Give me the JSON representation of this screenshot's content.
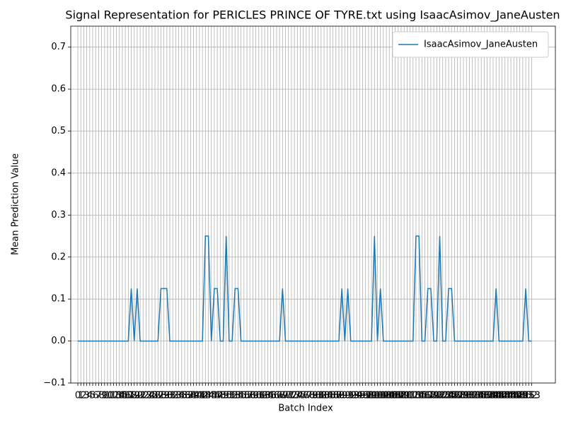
{
  "chart_data": {
    "type": "line",
    "title": "Signal Representation for PERICLES PRINCE OF TYRE.txt using IsaacAsimov_JaneAusten",
    "x_label": "Batch Index",
    "y_label": "Mean Prediction Value",
    "x": [
      0,
      1,
      2,
      3,
      4,
      5,
      6,
      7,
      8,
      9,
      10,
      11,
      12,
      13,
      14,
      15,
      16,
      17,
      18,
      19,
      20,
      21,
      22,
      23,
      24,
      25,
      26,
      27,
      28,
      29,
      30,
      31,
      32,
      33,
      34,
      35,
      36,
      37,
      38,
      39,
      40,
      41,
      42,
      43,
      44,
      45,
      46,
      47,
      48,
      49,
      50,
      51,
      52,
      53,
      54,
      55,
      56,
      57,
      58,
      59,
      60,
      61,
      62,
      63,
      64,
      65,
      66,
      67,
      68,
      69,
      70,
      71,
      72,
      73,
      74,
      75,
      76,
      77,
      78,
      79,
      80,
      81,
      82,
      83,
      84,
      85,
      86,
      87,
      88,
      89,
      90,
      91,
      92,
      93,
      94,
      95,
      96,
      97,
      98,
      99,
      100,
      101,
      102,
      103,
      104,
      105,
      106,
      107,
      108,
      109,
      110,
      111,
      112,
      113,
      114,
      115,
      116,
      117,
      118,
      119,
      120,
      121,
      122,
      123,
      124,
      125,
      126,
      127,
      128,
      129,
      130,
      131,
      132,
      133,
      134,
      135,
      136,
      137,
      138,
      139,
      140,
      141,
      142,
      143,
      144,
      145,
      146,
      147,
      148,
      149,
      150,
      151,
      152,
      153
    ],
    "series": [
      {
        "name": "IsaacAsimov_JaneAusten",
        "color": "#1f77b4",
        "values": [
          0,
          0,
          0,
          0,
          0,
          0,
          0,
          0,
          0,
          0,
          0,
          0,
          0,
          0,
          0,
          0,
          0,
          0,
          0.125,
          0,
          0.125,
          0,
          0,
          0,
          0,
          0,
          0,
          0,
          0.125,
          0.125,
          0.125,
          0,
          0,
          0,
          0,
          0,
          0,
          0,
          0,
          0,
          0,
          0,
          0,
          0.25,
          0.25,
          0,
          0.125,
          0.125,
          0,
          0,
          0.25,
          0,
          0,
          0.125,
          0.125,
          0,
          0,
          0,
          0,
          0,
          0,
          0,
          0,
          0,
          0,
          0,
          0,
          0,
          0,
          0.125,
          0,
          0,
          0,
          0,
          0,
          0,
          0,
          0,
          0,
          0,
          0,
          0,
          0,
          0,
          0,
          0,
          0,
          0,
          0,
          0.125,
          0,
          0.125,
          0,
          0,
          0,
          0,
          0,
          0,
          0,
          0,
          0.25,
          0,
          0.125,
          0,
          0,
          0,
          0,
          0,
          0,
          0,
          0,
          0,
          0,
          0,
          0.25,
          0.25,
          0,
          0,
          0.125,
          0.125,
          0,
          0,
          0.25,
          0,
          0,
          0.125,
          0.125,
          0,
          0,
          0,
          0,
          0,
          0,
          0,
          0,
          0,
          0,
          0,
          0,
          0,
          0,
          0.125,
          0,
          0,
          0,
          0,
          0,
          0,
          0,
          0,
          0,
          0.125,
          0,
          0
        ]
      }
    ],
    "xlim": [
      -2.4,
      161
    ],
    "xticks": [
      0,
      1,
      2,
      3,
      4,
      5,
      6,
      7,
      8,
      9,
      10,
      11,
      12,
      13,
      14,
      15,
      16,
      17,
      18,
      19,
      20,
      21,
      22,
      23,
      24,
      25,
      26,
      27,
      28,
      29,
      30,
      31,
      32,
      33,
      34,
      35,
      36,
      37,
      38,
      39,
      40,
      41,
      42,
      43,
      44,
      45,
      46,
      47,
      48,
      49,
      50,
      51,
      52,
      53,
      54,
      55,
      56,
      57,
      58,
      59,
      60,
      61,
      62,
      63,
      64,
      65,
      66,
      67,
      68,
      69,
      70,
      71,
      72,
      73,
      74,
      75,
      76,
      77,
      78,
      79,
      80,
      81,
      82,
      83,
      84,
      85,
      86,
      87,
      88,
      89,
      90,
      91,
      92,
      93,
      94,
      95,
      96,
      97,
      98,
      99,
      100,
      101,
      102,
      103,
      104,
      105,
      106,
      107,
      108,
      109,
      110,
      111,
      112,
      113,
      114,
      115,
      116,
      117,
      118,
      119,
      120,
      121,
      122,
      123,
      124,
      125,
      126,
      127,
      128,
      129,
      130,
      131,
      132,
      133,
      134,
      135,
      136,
      137,
      138,
      139,
      140,
      141,
      142,
      143,
      144,
      145,
      146,
      147,
      148,
      149,
      150,
      151,
      152,
      153
    ],
    "ylim": [
      -0.1,
      0.75
    ],
    "yticks": [
      {
        "value": -0.1,
        "label": "−0.1"
      },
      {
        "value": 0,
        "label": "0.0"
      },
      0.1,
      0.2,
      0.3,
      0.4,
      0.5,
      0.6,
      0.7
    ],
    "grid": true,
    "legend": "upper right"
  }
}
